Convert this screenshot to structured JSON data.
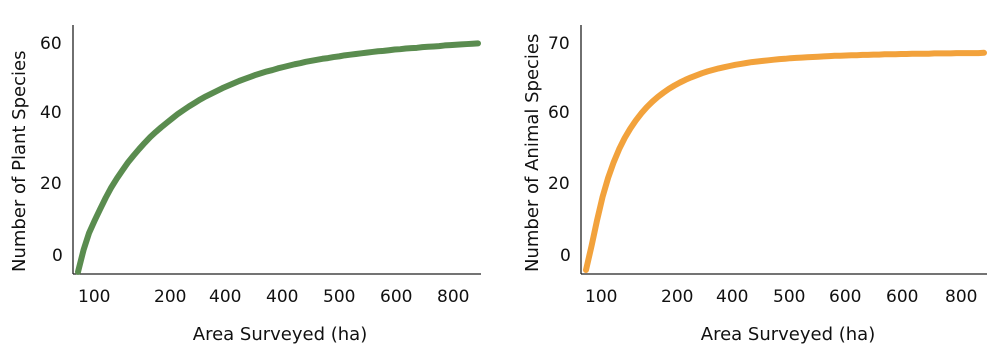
{
  "chart_data": [
    {
      "type": "line",
      "title": "",
      "xlabel": "Area Surveyed (ha)",
      "ylabel": "Number of Plant Species",
      "x_tick_labels": [
        "100",
        "200",
        "400",
        "400",
        "500",
        "600",
        "800"
      ],
      "y_tick_labels": [
        "60",
        "40",
        "20",
        "0"
      ],
      "grid": false,
      "legend": "none",
      "series": [
        {
          "color": "#5a8c4f",
          "x": [
            10,
            20,
            30,
            40,
            50,
            60,
            70,
            80,
            90,
            100,
            110,
            120,
            130,
            140,
            150,
            160,
            170,
            180,
            190,
            200,
            210,
            220,
            230,
            240,
            250,
            260,
            270,
            280,
            290,
            300,
            310,
            320,
            330,
            340,
            350,
            360,
            370,
            380,
            390,
            400,
            410,
            420,
            430,
            440,
            450,
            460,
            470,
            480,
            490,
            500,
            510,
            520,
            530,
            540,
            550,
            560,
            570,
            580,
            590,
            600,
            610,
            620,
            630,
            640,
            650,
            660,
            670,
            680,
            690,
            700,
            710,
            720,
            730
          ],
          "values": [
            -5.8,
            0.6,
            5.6,
            9.2,
            12.6,
            15.9,
            18.9,
            21.5,
            23.9,
            26.2,
            28.2,
            30.1,
            31.9,
            33.6,
            35.1,
            36.5,
            37.8,
            39.1,
            40.4,
            41.5,
            42.6,
            43.6,
            44.6,
            45.5,
            46.3,
            47.1,
            47.9,
            48.6,
            49.3,
            50.0,
            50.6,
            51.2,
            51.8,
            52.3,
            52.8,
            53.2,
            53.7,
            54.1,
            54.5,
            54.9,
            55.2,
            55.6,
            55.9,
            56.2,
            56.5,
            56.7,
            57.0,
            57.2,
            57.5,
            57.7,
            57.9,
            58.1,
            58.3,
            58.5,
            58.7,
            58.8,
            59.0,
            59.2,
            59.3,
            59.5,
            59.6,
            59.7,
            59.9,
            60.0,
            60.1,
            60.2,
            60.4,
            60.5,
            60.6,
            60.7,
            60.8,
            60.9,
            61.0
          ]
        }
      ]
    },
    {
      "type": "line",
      "title": "",
      "xlabel": "Area Surveyed (ha)",
      "ylabel": "Number of Animal Species",
      "x_tick_labels": [
        "100",
        "200",
        "400",
        "500",
        "600",
        "600",
        "800"
      ],
      "y_tick_labels": [
        "70",
        "60",
        "20",
        "0"
      ],
      "grid": false,
      "legend": "none",
      "series": [
        {
          "color": "#f2a23c",
          "x": [
            10,
            20,
            30,
            40,
            50,
            60,
            70,
            80,
            90,
            100,
            110,
            120,
            130,
            140,
            150,
            160,
            170,
            180,
            190,
            200,
            210,
            220,
            230,
            240,
            250,
            260,
            270,
            280,
            290,
            300,
            310,
            320,
            330,
            340,
            350,
            360,
            370,
            380,
            390,
            400,
            410,
            420,
            430,
            440,
            450,
            460,
            470,
            480,
            490,
            500,
            510,
            520,
            530,
            540,
            550,
            560,
            570,
            580,
            590,
            600,
            610,
            620,
            630,
            640,
            650,
            660,
            670,
            680,
            690,
            700,
            710,
            720,
            730
          ],
          "values": [
            -6.0,
            2.0,
            10.6,
            18.4,
            24.7,
            29.9,
            34.3,
            38.0,
            41.1,
            43.8,
            46.2,
            48.3,
            50.1,
            51.7,
            53.1,
            54.4,
            55.5,
            56.5,
            57.4,
            58.2,
            58.9,
            59.6,
            60.2,
            60.7,
            61.2,
            61.6,
            62.0,
            62.4,
            62.7,
            63.0,
            63.3,
            63.5,
            63.7,
            63.9,
            64.1,
            64.3,
            64.4,
            64.6,
            64.7,
            64.8,
            64.9,
            65.0,
            65.1,
            65.2,
            65.3,
            65.4,
            65.4,
            65.5,
            65.6,
            65.6,
            65.7,
            65.7,
            65.8,
            65.8,
            65.9,
            65.9,
            65.9,
            66.0,
            66.0,
            66.1,
            66.1,
            66.1,
            66.1,
            66.2,
            66.2,
            66.2,
            66.2,
            66.3,
            66.3,
            66.3,
            66.3,
            66.3,
            66.4
          ]
        }
      ]
    }
  ]
}
